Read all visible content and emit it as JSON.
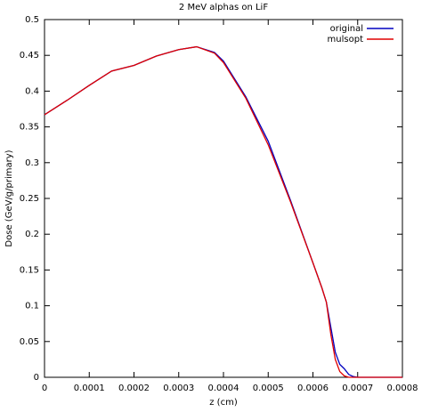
{
  "chart_data": {
    "type": "line",
    "title": "2 MeV alphas on LiF",
    "x_label": "z (cm)",
    "y_label": "Dose (GeV/g/primary)",
    "x": [
      0,
      5e-05,
      0.0001,
      0.00015,
      0.0002,
      0.00025,
      0.0003,
      0.00034,
      0.00038,
      0.0004,
      0.00045,
      0.0005,
      0.00055,
      0.0006,
      0.00062,
      0.00063,
      0.00064,
      0.00065,
      0.00066,
      0.00067,
      0.00068,
      0.00069,
      0.0007,
      0.0008
    ],
    "series": [
      {
        "name": "original",
        "color": "#0000c0",
        "values": [
          0.367,
          0.387,
          0.408,
          0.428,
          0.436,
          0.449,
          0.458,
          0.462,
          0.454,
          0.442,
          0.392,
          0.33,
          0.247,
          0.16,
          0.125,
          0.105,
          0.07,
          0.035,
          0.018,
          0.012,
          0.004,
          0.001,
          0,
          0
        ]
      },
      {
        "name": "mulsopt",
        "color": "#e00000",
        "values": [
          0.367,
          0.387,
          0.408,
          0.428,
          0.436,
          0.449,
          0.458,
          0.462,
          0.453,
          0.44,
          0.39,
          0.325,
          0.245,
          0.16,
          0.125,
          0.105,
          0.06,
          0.025,
          0.008,
          0.002,
          0,
          0,
          0,
          0
        ]
      }
    ],
    "xlim": [
      0,
      0.0008
    ],
    "xticks": [
      0,
      0.0001,
      0.0002,
      0.0003,
      0.0004,
      0.0005,
      0.0006,
      0.0007,
      0.0008
    ],
    "ylim": [
      0,
      0.5
    ],
    "yticks": [
      0,
      0.05,
      0.1,
      0.15,
      0.2,
      0.25,
      0.3,
      0.35,
      0.4,
      0.45,
      0.5
    ],
    "grid": false,
    "legend": "top-right"
  }
}
